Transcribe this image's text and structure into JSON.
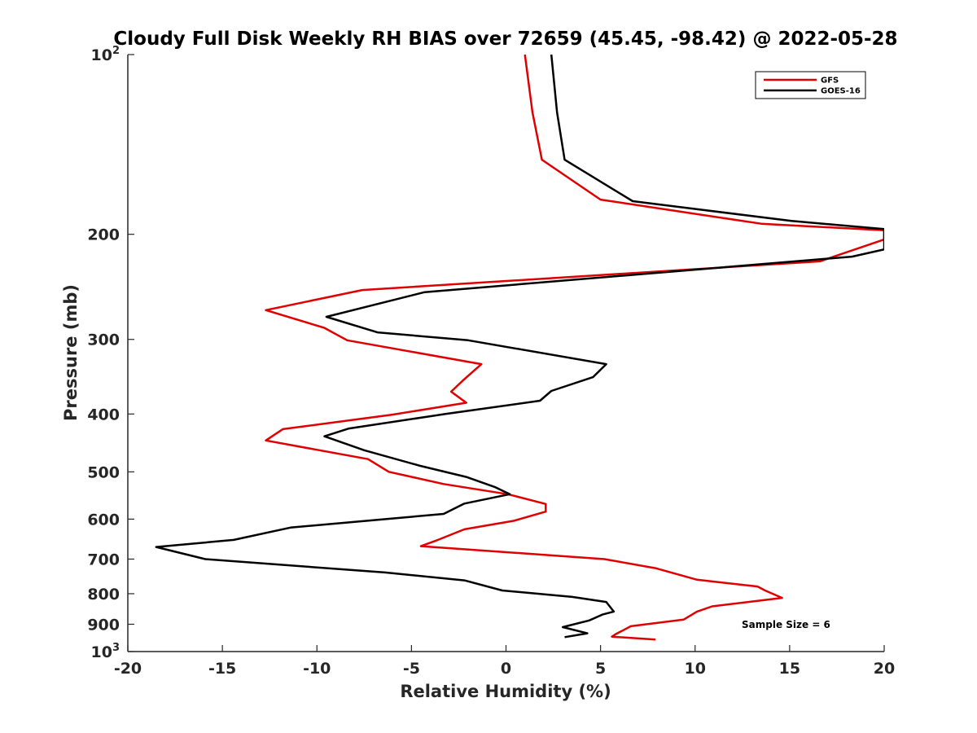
{
  "chart_data": {
    "type": "line",
    "title": "Cloudy Full Disk Weekly RH BIAS over 72659 (45.45, -98.42) @ 2022-05-28",
    "xlabel": "Relative Humidity (%)",
    "ylabel": "Pressure (mb)",
    "xlim": [
      -20,
      20
    ],
    "ylim": [
      100,
      1000
    ],
    "y_scale": "log",
    "y_reversed": true,
    "grid": false,
    "legend_position": "top-right",
    "x_ticks": [
      "-20",
      "-15",
      "-10",
      "-5",
      "0",
      "5",
      "10",
      "15",
      "20"
    ],
    "y_ticks": [
      {
        "value": 100,
        "base": "10",
        "exp": "2"
      },
      {
        "value": 200,
        "label": "200"
      },
      {
        "value": 300,
        "label": "300"
      },
      {
        "value": 400,
        "label": "400"
      },
      {
        "value": 500,
        "label": "500"
      },
      {
        "value": 600,
        "label": "600"
      },
      {
        "value": 700,
        "label": "700"
      },
      {
        "value": 800,
        "label": "800"
      },
      {
        "value": 900,
        "label": "900"
      },
      {
        "value": 1000,
        "base": "10",
        "exp": "3"
      }
    ],
    "series": [
      {
        "name": "GFS",
        "color": "#e00000",
        "points": [
          [
            1.0,
            100
          ],
          [
            1.4,
            125
          ],
          [
            1.9,
            150
          ],
          [
            5.0,
            175
          ],
          [
            13.5,
            192
          ],
          [
            20.0,
            197
          ],
          [
            20.0,
            204
          ],
          [
            16.6,
            222
          ],
          [
            -7.6,
            248
          ],
          [
            -12.7,
            268
          ],
          [
            -9.6,
            287
          ],
          [
            -8.4,
            301
          ],
          [
            -1.3,
            330
          ],
          [
            -2.3,
            352
          ],
          [
            -2.9,
            367
          ],
          [
            -2.1,
            383
          ],
          [
            -6.0,
            401
          ],
          [
            -11.8,
            424
          ],
          [
            -12.7,
            443
          ],
          [
            -7.3,
            476
          ],
          [
            -6.2,
            500
          ],
          [
            -3.3,
            524
          ],
          [
            0.1,
            545
          ],
          [
            2.1,
            566
          ],
          [
            2.1,
            583
          ],
          [
            0.4,
            604
          ],
          [
            -2.2,
            624
          ],
          [
            -3.6,
            650
          ],
          [
            -4.5,
            666
          ],
          [
            5.2,
            700
          ],
          [
            7.9,
            725
          ],
          [
            10.1,
            758
          ],
          [
            13.3,
            778
          ],
          [
            13.7,
            790
          ],
          [
            14.6,
            813
          ],
          [
            10.9,
            840
          ],
          [
            10.1,
            857
          ],
          [
            9.4,
            884
          ],
          [
            6.6,
            907
          ],
          [
            6.2,
            921
          ],
          [
            5.8,
            935
          ],
          [
            5.6,
            944
          ],
          [
            7.9,
            955
          ]
        ]
      },
      {
        "name": "GOES-16",
        "color": "#000000",
        "points": [
          [
            2.4,
            100
          ],
          [
            2.7,
            125
          ],
          [
            3.1,
            150
          ],
          [
            6.7,
            176
          ],
          [
            15.1,
            190
          ],
          [
            20.0,
            196
          ],
          [
            20.0,
            212
          ],
          [
            18.3,
            218
          ],
          [
            -4.3,
            250
          ],
          [
            -9.5,
            275
          ],
          [
            -6.8,
            292
          ],
          [
            -2.0,
            301
          ],
          [
            5.3,
            330
          ],
          [
            4.6,
            347
          ],
          [
            2.4,
            366
          ],
          [
            1.8,
            380
          ],
          [
            -3.2,
            400
          ],
          [
            -8.3,
            423
          ],
          [
            -9.6,
            436
          ],
          [
            -7.5,
            460
          ],
          [
            -4.6,
            488
          ],
          [
            -2.1,
            510
          ],
          [
            -0.6,
            530
          ],
          [
            0.2,
            545
          ],
          [
            -2.2,
            565
          ],
          [
            -3.3,
            588
          ],
          [
            -11.4,
            620
          ],
          [
            -14.4,
            650
          ],
          [
            -18.5,
            668
          ],
          [
            -15.9,
            700
          ],
          [
            -6.4,
            737
          ],
          [
            -2.2,
            760
          ],
          [
            -0.2,
            790
          ],
          [
            3.5,
            810
          ],
          [
            5.3,
            826
          ],
          [
            5.7,
            857
          ],
          [
            5.1,
            867
          ],
          [
            4.4,
            887
          ],
          [
            3.0,
            910
          ],
          [
            4.3,
            932
          ],
          [
            3.1,
            946
          ]
        ]
      }
    ],
    "annotation": "Sample Size = 6"
  }
}
